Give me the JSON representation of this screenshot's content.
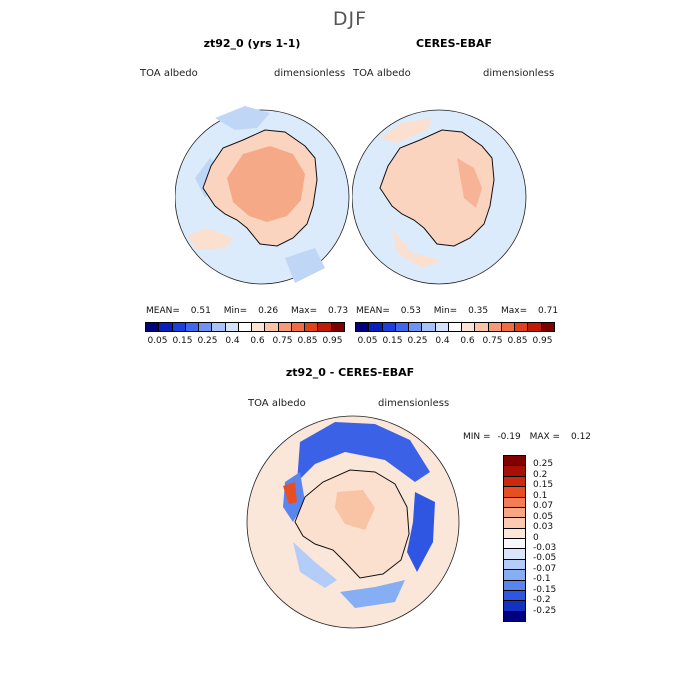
{
  "figure": {
    "season": "DJF"
  },
  "panels": [
    {
      "title": "zt92_0 (yrs 1-1)",
      "left_label": "TOA albedo",
      "right_label": "dimensionless",
      "stats": {
        "mean_label": "MEAN=",
        "mean": "0.51",
        "min_label": "Min=",
        "min": "0.26",
        "max_label": "Max=",
        "max": "0.73"
      }
    },
    {
      "title": "CERES-EBAF",
      "left_label": "TOA albedo",
      "right_label": "dimensionless",
      "stats": {
        "mean_label": "MEAN=",
        "mean": "0.53",
        "min_label": "Min=",
        "min": "0.35",
        "max_label": "Max=",
        "max": "0.71"
      }
    },
    {
      "title": "zt92_0 - CERES-EBAF",
      "left_label": "TOA albedo",
      "right_label": "dimensionless",
      "stats": {
        "min_label": "MIN =",
        "min": "-0.19",
        "max_label": "MAX =",
        "max": "0.12"
      }
    }
  ],
  "colorbar_abs": {
    "labels": [
      "0.05",
      "0.15",
      "0.25",
      "0.4",
      "0.6",
      "0.75",
      "0.85",
      "0.95"
    ],
    "colors": [
      "#000080",
      "#0a1fbd",
      "#1c3fe0",
      "#3f68ef",
      "#6f93f5",
      "#a7c3f9",
      "#d4e3fb",
      "#ffffff",
      "#fde3d4",
      "#fbc4a8",
      "#f79a78",
      "#f26b44",
      "#e0401c",
      "#c01a08",
      "#800000"
    ]
  },
  "colorbar_diff": {
    "labels": [
      "0.25",
      "0.2",
      "0.15",
      "0.1",
      "0.07",
      "0.05",
      "0.03",
      "0",
      "-0.03",
      "-0.05",
      "-0.07",
      "-0.1",
      "-0.15",
      "-0.2",
      "-0.25"
    ],
    "colors": [
      "#800000",
      "#a80f05",
      "#cc2a0d",
      "#e84e22",
      "#f37d55",
      "#f9a684",
      "#fccab3",
      "#fde5d8",
      "#f7f8fb",
      "#d9e6fb",
      "#b4cdf8",
      "#86aef4",
      "#5a85ef",
      "#2f55e3",
      "#1432c2",
      "#000080"
    ]
  }
}
